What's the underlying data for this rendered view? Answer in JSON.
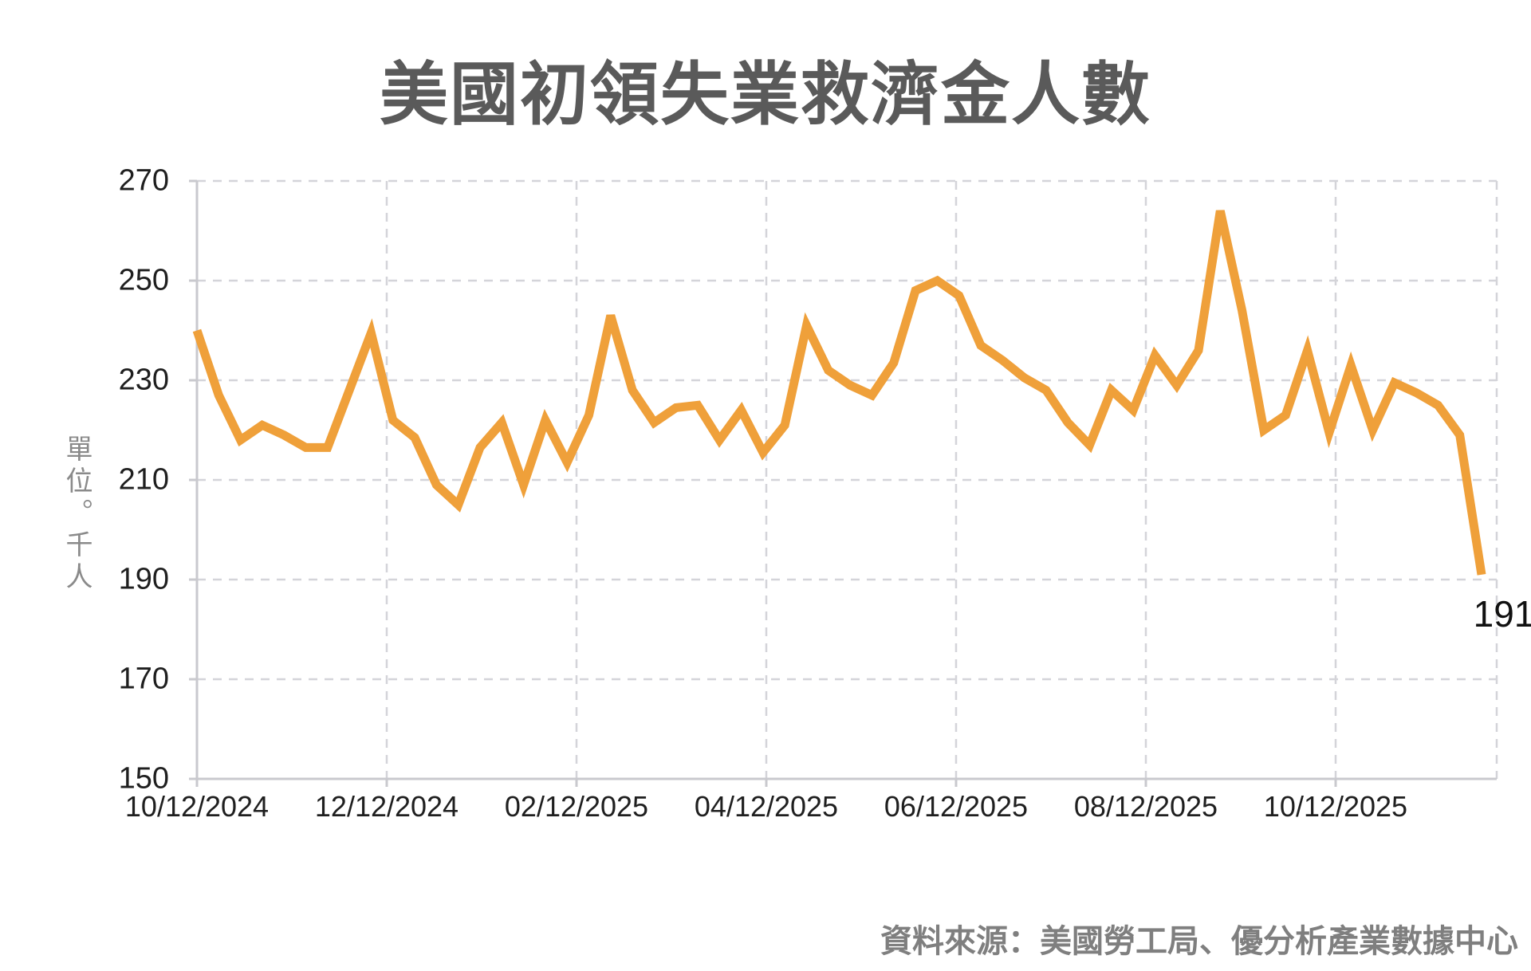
{
  "title": "美國初領失業救濟金人數",
  "y_unit_label": "單位。千人",
  "source_note": "資料來源：美國勞工局、優分析產業數據中心",
  "last_point_label": "191",
  "chart_data": {
    "type": "line",
    "title": "美國初領失業救濟金人數",
    "ylabel": "單位。千人",
    "xlabel": "",
    "ylim": [
      150,
      270
    ],
    "y_ticks": [
      270,
      250,
      230,
      210,
      190,
      170,
      150
    ],
    "x_axis_labels": [
      "10/12/2024",
      "12/12/2024",
      "02/12/2025",
      "04/12/2025",
      "06/12/2025",
      "08/12/2025",
      "10/12/2025"
    ],
    "frequency": "weekly",
    "grid": "dashed",
    "legend_position": "none",
    "line_color": "#EFA03A",
    "grid_color": "#D4D4D9",
    "axis_color": "#C9C9CE",
    "series": [
      {
        "name": "初領失業救濟金人數 (千人)",
        "values": [
          240,
          227,
          218,
          221,
          219,
          216.5,
          216.5,
          228,
          239.5,
          222,
          218.5,
          209,
          205,
          216.5,
          221.5,
          209,
          222,
          213.5,
          223,
          243,
          228,
          221.5,
          224.5,
          225,
          218,
          224,
          215.5,
          221,
          241,
          232,
          229,
          227,
          233.5,
          248,
          250,
          247,
          237,
          234,
          230.5,
          228,
          221.5,
          217,
          228,
          224,
          235,
          229,
          236,
          264,
          244,
          220,
          223,
          236,
          219.5,
          233,
          220,
          229.5,
          227.5,
          225,
          219,
          191
        ]
      }
    ],
    "annotations": [
      {
        "text": "191",
        "attached_to": "last-point"
      }
    ]
  }
}
